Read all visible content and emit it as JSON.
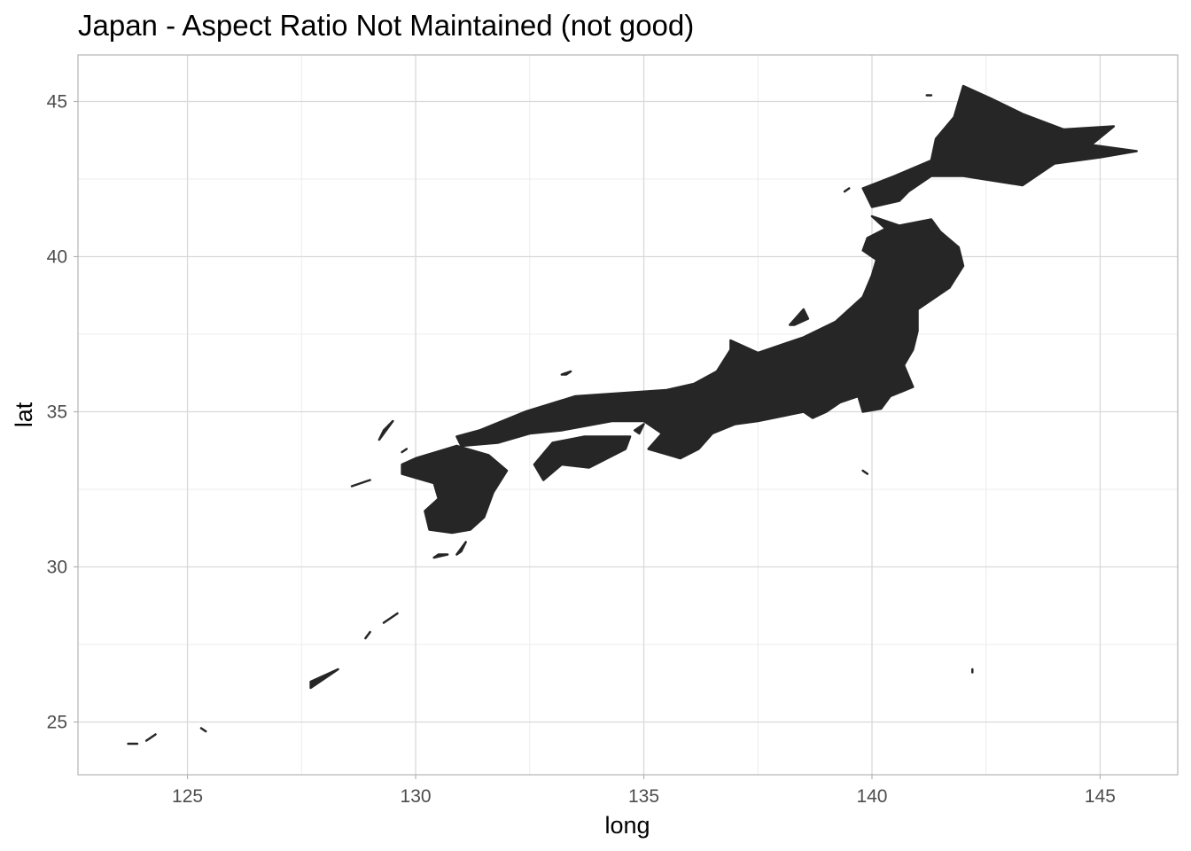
{
  "chart_data": {
    "type": "map",
    "title": "Japan - Aspect Ratio Not Maintained (not good)",
    "xlabel": "long",
    "ylabel": "lat",
    "xlim": [
      122.6,
      146.7
    ],
    "ylim": [
      23.3,
      46.5
    ],
    "x_ticks": [
      125,
      130,
      135,
      140,
      145
    ],
    "y_ticks": [
      25,
      30,
      35,
      40,
      45
    ],
    "x_tick_labels": [
      "125",
      "130",
      "135",
      "140",
      "145"
    ],
    "y_tick_labels": [
      "25",
      "30",
      "35",
      "40",
      "45"
    ],
    "grid": true,
    "legend": "none",
    "colors": {
      "fill": "#262626",
      "grid_major": "#d9d9d9",
      "grid_minor": "#ececec",
      "panel_border": "#b3b3b3"
    },
    "regions": [
      {
        "name": "Hokkaido",
        "points": [
          [
            142.0,
            45.5
          ],
          [
            142.6,
            45.1
          ],
          [
            143.3,
            44.6
          ],
          [
            144.2,
            44.1
          ],
          [
            145.3,
            44.2
          ],
          [
            144.8,
            43.6
          ],
          [
            145.8,
            43.4
          ],
          [
            145.0,
            43.2
          ],
          [
            144.0,
            43.0
          ],
          [
            143.3,
            42.3
          ],
          [
            142.0,
            42.6
          ],
          [
            141.3,
            42.6
          ],
          [
            140.8,
            42.1
          ],
          [
            140.6,
            41.8
          ],
          [
            140.0,
            41.6
          ],
          [
            139.8,
            42.2
          ],
          [
            140.5,
            42.6
          ],
          [
            141.3,
            43.1
          ],
          [
            141.4,
            43.8
          ],
          [
            141.8,
            44.5
          ]
        ]
      },
      {
        "name": "Honshu",
        "points": [
          [
            140.0,
            41.3
          ],
          [
            140.6,
            41.0
          ],
          [
            141.3,
            41.2
          ],
          [
            141.5,
            40.8
          ],
          [
            141.9,
            40.3
          ],
          [
            142.0,
            39.7
          ],
          [
            141.7,
            39.0
          ],
          [
            141.0,
            38.3
          ],
          [
            141.0,
            37.6
          ],
          [
            140.9,
            37.0
          ],
          [
            140.7,
            36.5
          ],
          [
            140.9,
            35.8
          ],
          [
            140.4,
            35.5
          ],
          [
            140.2,
            35.1
          ],
          [
            139.8,
            35.0
          ],
          [
            139.7,
            35.5
          ],
          [
            139.3,
            35.3
          ],
          [
            139.0,
            35.0
          ],
          [
            138.7,
            34.8
          ],
          [
            138.5,
            35.0
          ],
          [
            137.5,
            34.7
          ],
          [
            137.0,
            34.6
          ],
          [
            136.5,
            34.3
          ],
          [
            136.2,
            33.8
          ],
          [
            135.8,
            33.5
          ],
          [
            135.1,
            33.8
          ],
          [
            135.4,
            34.3
          ],
          [
            135.0,
            34.7
          ],
          [
            134.3,
            34.7
          ],
          [
            133.2,
            34.4
          ],
          [
            132.5,
            34.3
          ],
          [
            131.8,
            34.0
          ],
          [
            131.0,
            33.9
          ],
          [
            130.9,
            34.2
          ],
          [
            131.4,
            34.4
          ],
          [
            132.4,
            35.0
          ],
          [
            133.5,
            35.5
          ],
          [
            134.5,
            35.6
          ],
          [
            135.5,
            35.7
          ],
          [
            136.1,
            35.9
          ],
          [
            136.6,
            36.3
          ],
          [
            136.9,
            37.0
          ],
          [
            136.9,
            37.3
          ],
          [
            137.5,
            36.9
          ],
          [
            138.5,
            37.4
          ],
          [
            139.2,
            37.9
          ],
          [
            139.8,
            38.7
          ],
          [
            140.0,
            39.4
          ],
          [
            140.1,
            39.9
          ],
          [
            139.8,
            40.2
          ],
          [
            139.9,
            40.6
          ],
          [
            140.3,
            40.9
          ]
        ]
      },
      {
        "name": "Kyushu",
        "points": [
          [
            130.0,
            33.5
          ],
          [
            130.9,
            33.9
          ],
          [
            131.6,
            33.6
          ],
          [
            132.0,
            33.1
          ],
          [
            131.7,
            32.4
          ],
          [
            131.5,
            31.6
          ],
          [
            131.2,
            31.2
          ],
          [
            130.8,
            31.1
          ],
          [
            130.3,
            31.2
          ],
          [
            130.2,
            31.8
          ],
          [
            130.5,
            32.2
          ],
          [
            130.4,
            32.7
          ],
          [
            129.7,
            33.0
          ],
          [
            129.7,
            33.3
          ]
        ]
      },
      {
        "name": "Shikoku",
        "points": [
          [
            132.6,
            33.3
          ],
          [
            133.0,
            34.0
          ],
          [
            133.7,
            34.2
          ],
          [
            134.7,
            34.2
          ],
          [
            134.6,
            33.8
          ],
          [
            134.2,
            33.5
          ],
          [
            133.8,
            33.2
          ],
          [
            133.2,
            33.3
          ],
          [
            132.8,
            32.8
          ]
        ]
      },
      {
        "name": "Sado",
        "points": [
          [
            138.2,
            37.8
          ],
          [
            138.5,
            38.3
          ],
          [
            138.6,
            38.0
          ],
          [
            138.3,
            37.8
          ]
        ]
      },
      {
        "name": "Okinawa",
        "points": [
          [
            127.7,
            26.1
          ],
          [
            128.3,
            26.7
          ],
          [
            128.0,
            26.5
          ],
          [
            127.7,
            26.3
          ]
        ]
      },
      {
        "name": "Amami",
        "points": [
          [
            129.3,
            28.2
          ],
          [
            129.6,
            28.5
          ],
          [
            129.4,
            28.3
          ]
        ]
      },
      {
        "name": "Tokunoshima",
        "points": [
          [
            128.9,
            27.7
          ],
          [
            129.0,
            27.9
          ],
          [
            128.95,
            27.8
          ]
        ]
      },
      {
        "name": "Yakushima",
        "points": [
          [
            130.4,
            30.3
          ],
          [
            130.7,
            30.4
          ],
          [
            130.5,
            30.4
          ]
        ]
      },
      {
        "name": "Tanegashima",
        "points": [
          [
            130.9,
            30.4
          ],
          [
            131.1,
            30.8
          ],
          [
            131.0,
            30.5
          ]
        ]
      },
      {
        "name": "Goto",
        "points": [
          [
            128.6,
            32.6
          ],
          [
            129.0,
            32.8
          ],
          [
            128.8,
            32.7
          ]
        ]
      },
      {
        "name": "Iki",
        "points": [
          [
            129.7,
            33.7
          ],
          [
            129.8,
            33.8
          ]
        ]
      },
      {
        "name": "Tsushima",
        "points": [
          [
            129.2,
            34.1
          ],
          [
            129.5,
            34.7
          ],
          [
            129.3,
            34.4
          ]
        ]
      },
      {
        "name": "Oki",
        "points": [
          [
            133.2,
            36.2
          ],
          [
            133.4,
            36.3
          ],
          [
            133.3,
            36.2
          ]
        ]
      },
      {
        "name": "Rishiri",
        "points": [
          [
            141.2,
            45.2
          ],
          [
            141.3,
            45.2
          ]
        ]
      },
      {
        "name": "Ishigaki",
        "points": [
          [
            124.1,
            24.4
          ],
          [
            124.3,
            24.6
          ],
          [
            124.2,
            24.5
          ]
        ]
      },
      {
        "name": "Iriomote",
        "points": [
          [
            123.7,
            24.3
          ],
          [
            123.9,
            24.3
          ],
          [
            123.8,
            24.3
          ]
        ]
      },
      {
        "name": "Miyako",
        "points": [
          [
            125.3,
            24.8
          ],
          [
            125.4,
            24.7
          ]
        ]
      },
      {
        "name": "Hachijo",
        "points": [
          [
            139.8,
            33.1
          ],
          [
            139.9,
            33.0
          ]
        ]
      },
      {
        "name": "Chichijima",
        "points": [
          [
            142.2,
            26.7
          ],
          [
            142.2,
            26.6
          ]
        ]
      },
      {
        "name": "Okushiri",
        "points": [
          [
            139.4,
            42.1
          ],
          [
            139.5,
            42.2
          ]
        ]
      },
      {
        "name": "Awaji",
        "points": [
          [
            134.8,
            34.4
          ],
          [
            135.0,
            34.6
          ],
          [
            134.9,
            34.3
          ]
        ]
      }
    ]
  }
}
